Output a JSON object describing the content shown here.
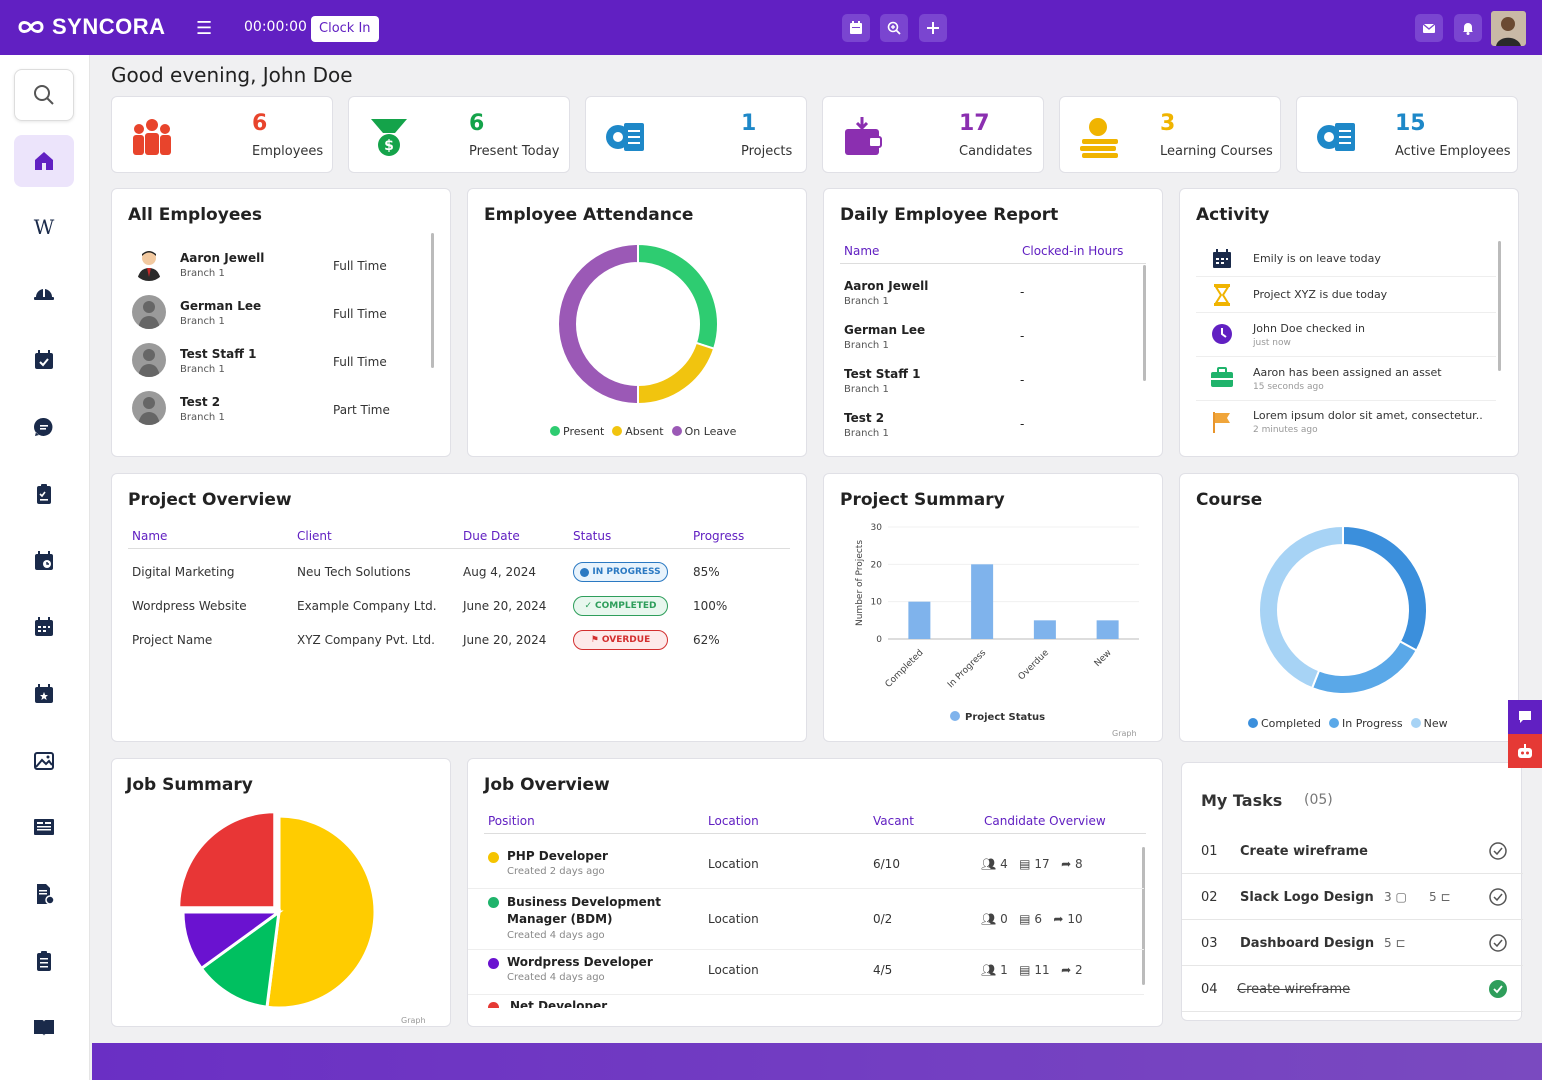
{
  "header": {
    "logo_text": "SYNCORA",
    "timer": "00:00:00",
    "clock_in_label": "Clock In"
  },
  "greeting": "Good evening, John Doe",
  "stats": [
    {
      "value": "6",
      "label": "Employees",
      "color": "#e8442c"
    },
    {
      "value": "6",
      "label": "Present Today",
      "color": "#14a34a"
    },
    {
      "value": "1",
      "label": "Projects",
      "color": "#1e88c8"
    },
    {
      "value": "17",
      "label": "Candidates",
      "color": "#8b2fb0"
    },
    {
      "value": "3",
      "label": "Learning Courses",
      "color": "#f0b400"
    },
    {
      "value": "15",
      "label": "Active Employees",
      "color": "#1e88c8"
    }
  ],
  "all_employees": {
    "title": "All Employees",
    "items": [
      {
        "name": "Aaron Jewell",
        "branch": "Branch 1",
        "type": "Full Time"
      },
      {
        "name": "German Lee",
        "branch": "Branch 1",
        "type": "Full Time"
      },
      {
        "name": "Test Staff 1",
        "branch": "Branch 1",
        "type": "Full Time"
      },
      {
        "name": "Test 2",
        "branch": "Branch 1",
        "type": "Part Time"
      }
    ]
  },
  "attendance": {
    "title": "Employee Attendance",
    "legend": [
      "Present",
      "Absent",
      "On Leave"
    ]
  },
  "daily_report": {
    "title": "Daily Employee Report",
    "col_name": "Name",
    "col_hours": "Clocked-in Hours",
    "rows": [
      {
        "name": "Aaron Jewell",
        "branch": "Branch 1",
        "hours": "-"
      },
      {
        "name": "German Lee",
        "branch": "Branch 1",
        "hours": "-"
      },
      {
        "name": "Test Staff 1",
        "branch": "Branch 1",
        "hours": "-"
      },
      {
        "name": "Test 2",
        "branch": "Branch 1",
        "hours": "-"
      }
    ]
  },
  "activity": {
    "title": "Activity",
    "items": [
      {
        "text": "Emily is on leave today",
        "time": ""
      },
      {
        "text": "Project XYZ is due today",
        "time": ""
      },
      {
        "text": "John Doe checked in",
        "time": "just now"
      },
      {
        "text": "Aaron has been assigned an asset",
        "time": "15 seconds ago"
      },
      {
        "text": "Lorem ipsum dolor sit amet, consectetur..",
        "time": "2 minutes ago"
      }
    ]
  },
  "project_overview": {
    "title": "Project Overview",
    "headers": [
      "Name",
      "Client",
      "Due Date",
      "Status",
      "Progress"
    ],
    "rows": [
      {
        "name": "Digital Marketing",
        "client": "Neu Tech Solutions",
        "due": "Aug 4, 2024",
        "status": "IN PROGRESS",
        "progress": "85%"
      },
      {
        "name": "Wordpress Website",
        "client": "Example Company Ltd.",
        "due": "June 20, 2024",
        "status": "COMPLETED",
        "progress": "100%"
      },
      {
        "name": "Project Name",
        "client": "XYZ Company Pvt. Ltd.",
        "due": "June 20, 2024",
        "status": "OVERDUE",
        "progress": "62%"
      }
    ]
  },
  "project_summary": {
    "title": "Project Summary",
    "graph_note": "Graph"
  },
  "course": {
    "title": "Course",
    "legend": [
      "Completed",
      "In Progress",
      "New"
    ]
  },
  "job_summary": {
    "title": "Job Summary",
    "graph_note": "Graph"
  },
  "job_overview": {
    "title": "Job Overview",
    "headers": [
      "Position",
      "Location",
      "Vacant",
      "Candidate Overview"
    ],
    "rows": [
      {
        "position": "PHP Developer",
        "created": "Created 2 days ago",
        "location": "Location",
        "vacant": "6/10",
        "a": "4",
        "b": "17",
        "c": "8",
        "color": "#f5c400"
      },
      {
        "position": "Business Development Manager (BDM)",
        "created": "Created 4 days ago",
        "location": "Location",
        "vacant": "0/2",
        "a": "0",
        "b": "6",
        "c": "10",
        "color": "#1fb36b"
      },
      {
        "position": "Wordpress Developer",
        "created": "Created 4 days ago",
        "location": "Location",
        "vacant": "4/5",
        "a": "1",
        "b": "11",
        "c": "2",
        "color": "#6a12d0"
      },
      {
        "position": "Net Developer",
        "created": "",
        "location": "",
        "vacant": "",
        "a": "",
        "b": "",
        "c": "",
        "color": "#e53935"
      }
    ]
  },
  "tasks": {
    "title": "My Tasks",
    "count": "(05)",
    "items": [
      {
        "num": "01",
        "name": "Create wireframe",
        "comments": "",
        "subtasks": "",
        "done": false
      },
      {
        "num": "02",
        "name": "Slack Logo Design",
        "comments": "3",
        "subtasks": "5",
        "done": false
      },
      {
        "num": "03",
        "name": "Dashboard Design",
        "comments": "",
        "subtasks": "5",
        "done": false
      },
      {
        "num": "04",
        "name": "Create wireframe",
        "comments": "",
        "subtasks": "",
        "done": true
      }
    ]
  },
  "chart_data": [
    {
      "type": "pie",
      "title": "Employee Attendance",
      "categories": [
        "Present",
        "Absent",
        "On Leave"
      ],
      "values": [
        30,
        20,
        50
      ],
      "colors": [
        "#2ecc71",
        "#f1c40f",
        "#9b59b6"
      ],
      "donut": true,
      "legend": "bottom"
    },
    {
      "type": "bar",
      "title": "Project Summary",
      "categories": [
        "Completed",
        "In Progress",
        "Overdue",
        "New"
      ],
      "series": [
        {
          "name": "Project Status",
          "values": [
            10,
            20,
            5,
            5
          ]
        }
      ],
      "ylabel": "Number of Projects",
      "ylim": [
        0,
        30
      ],
      "yticks": [
        0,
        10,
        20,
        30
      ],
      "color": "#7fb3ec",
      "legend": "bottom"
    },
    {
      "type": "pie",
      "title": "Course",
      "categories": [
        "Completed",
        "In Progress",
        "New"
      ],
      "values": [
        33,
        23,
        44
      ],
      "colors": [
        "#3b8fdc",
        "#5aa8e8",
        "#a7d3f5"
      ],
      "donut": true,
      "legend": "bottom"
    },
    {
      "type": "pie",
      "title": "Job Summary",
      "values": [
        52,
        13,
        10,
        25
      ],
      "colors": [
        "#ffcc00",
        "#00c060",
        "#6a12d0",
        "#e83636"
      ],
      "donut": false
    }
  ]
}
